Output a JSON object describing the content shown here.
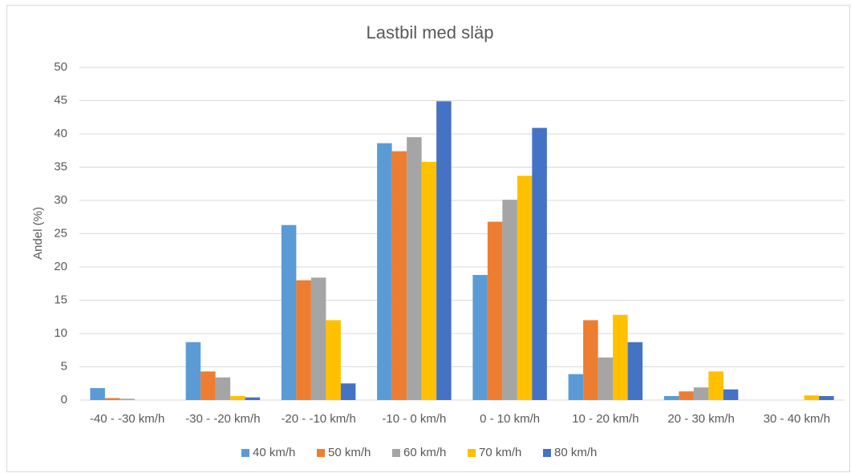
{
  "chart_data": {
    "type": "bar",
    "title": "Lastbil med släp",
    "y_label": "Andel (%)",
    "categories": [
      "-40 - -30 km/h",
      "-30 - -20 km/h",
      "-20 - -10 km/h",
      "-10 - 0 km/h",
      "0 - 10 km/h",
      "10 - 20 km/h",
      "20 - 30 km/h",
      "30 - 40 km/h"
    ],
    "series": [
      {
        "name": "40 km/h",
        "color": "#5b9bd5",
        "values": [
          1.8,
          8.7,
          26.3,
          38.6,
          18.8,
          3.9,
          0.6,
          0
        ]
      },
      {
        "name": "50 km/h",
        "color": "#ed7d31",
        "values": [
          0.3,
          4.3,
          18.0,
          37.4,
          26.8,
          12.0,
          1.3,
          0
        ]
      },
      {
        "name": "60 km/h",
        "color": "#a5a5a5",
        "values": [
          0.2,
          3.4,
          18.4,
          39.5,
          30.1,
          6.4,
          1.9,
          0
        ]
      },
      {
        "name": "70 km/h",
        "color": "#ffc000",
        "values": [
          0,
          0.6,
          12.0,
          35.8,
          33.7,
          12.8,
          4.3,
          0.7
        ]
      },
      {
        "name": "80 km/h",
        "color": "#4472c4",
        "values": [
          0,
          0.4,
          2.5,
          44.9,
          40.9,
          8.7,
          1.6,
          0.6
        ]
      }
    ],
    "ylim": [
      0,
      50
    ],
    "yticks": [
      0,
      5,
      10,
      15,
      20,
      25,
      30,
      35,
      40,
      45,
      50
    ],
    "grid": true,
    "legend": "bottom"
  }
}
